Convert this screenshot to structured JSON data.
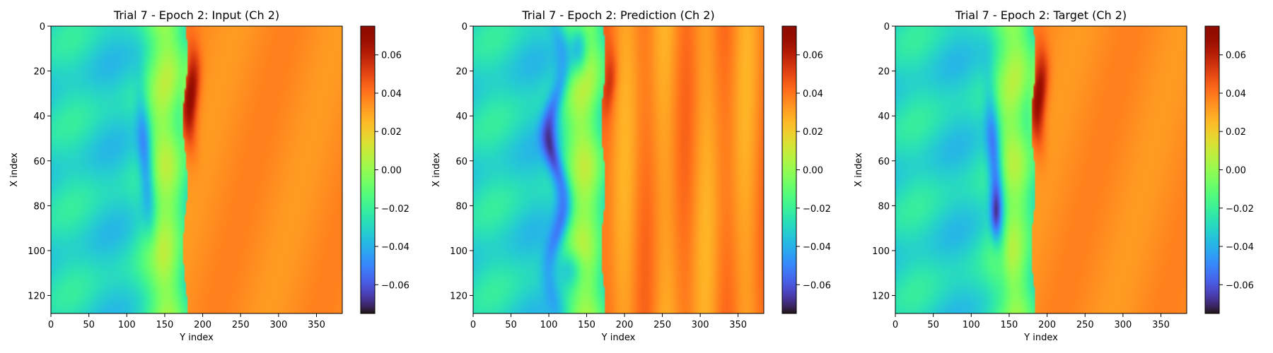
{
  "chart_data": [
    {
      "type": "heatmap",
      "title": "Trial 7 - Epoch 2: Input (Ch 2)",
      "xlabel": "Y index",
      "ylabel": "X index",
      "xlim": [
        0,
        384
      ],
      "ylim": [
        128,
        0
      ],
      "x_ticks": [
        "0",
        "50",
        "100",
        "150",
        "200",
        "250",
        "300",
        "350"
      ],
      "y_ticks": [
        "0",
        "20",
        "40",
        "60",
        "80",
        "100",
        "120"
      ],
      "colorbar": {
        "vmin": -0.075,
        "vmax": 0.075,
        "ticks": [
          "0.06",
          "0.04",
          "0.02",
          "0.00",
          "−0.02",
          "−0.04",
          "−0.06"
        ],
        "colormap": "turbo"
      },
      "field": {
        "front_y": 177,
        "right_value": 0.035,
        "left_value": -0.03,
        "peak_value": 0.072,
        "trough_value": -0.06
      }
    },
    {
      "type": "heatmap",
      "title": "Trial 7 - Epoch 2: Prediction (Ch 2)",
      "xlabel": "Y index",
      "ylabel": "X index",
      "xlim": [
        0,
        384
      ],
      "ylim": [
        128,
        0
      ],
      "x_ticks": [
        "0",
        "50",
        "100",
        "150",
        "200",
        "250",
        "300",
        "350"
      ],
      "y_ticks": [
        "0",
        "20",
        "40",
        "60",
        "80",
        "100",
        "120"
      ],
      "colorbar": {
        "vmin": -0.075,
        "vmax": 0.075,
        "ticks": [
          "0.06",
          "0.04",
          "0.02",
          "0.00",
          "−0.02",
          "−0.04",
          "−0.06"
        ],
        "colormap": "turbo"
      },
      "field": {
        "front_y": 172,
        "right_value": 0.035,
        "left_value": -0.03,
        "peak_value": 0.05,
        "trough_value": -0.065
      }
    },
    {
      "type": "heatmap",
      "title": "Trial 7 - Epoch 2: Target (Ch 2)",
      "xlabel": "Y index",
      "ylabel": "X index",
      "xlim": [
        0,
        384
      ],
      "ylim": [
        128,
        0
      ],
      "x_ticks": [
        "0",
        "50",
        "100",
        "150",
        "200",
        "250",
        "300",
        "350"
      ],
      "y_ticks": [
        "0",
        "20",
        "40",
        "60",
        "80",
        "100",
        "120"
      ],
      "colorbar": {
        "vmin": -0.075,
        "vmax": 0.075,
        "ticks": [
          "0.06",
          "0.04",
          "0.02",
          "0.00",
          "−0.02",
          "−0.04",
          "−0.06"
        ],
        "colormap": "turbo"
      },
      "field": {
        "front_y": 182,
        "right_value": 0.035,
        "left_value": -0.03,
        "peak_value": 0.072,
        "trough_value": -0.068
      }
    }
  ]
}
